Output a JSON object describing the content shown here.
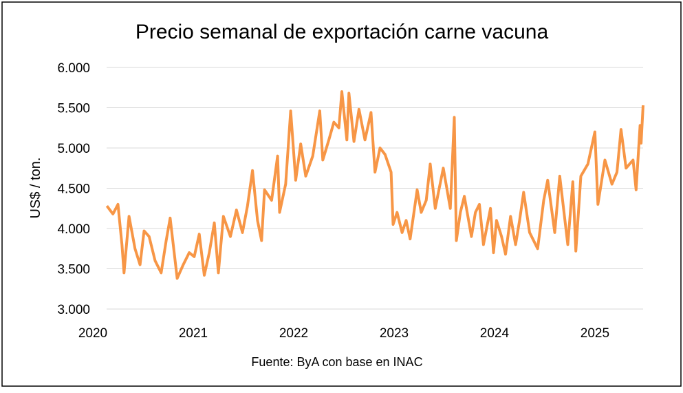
{
  "chart_data": {
    "type": "line",
    "title": "Precio semanal de exportación carne vacuna",
    "y_label": "US$ / ton.",
    "source": "Fuente: ByA con base en INAC",
    "x": [
      2020.14,
      2020.2,
      2020.25,
      2020.29,
      2020.31,
      2020.36,
      2020.42,
      2020.47,
      2020.51,
      2020.56,
      2020.62,
      2020.68,
      2020.73,
      2020.77,
      2020.84,
      2020.9,
      2020.96,
      2021.01,
      2021.06,
      2021.11,
      2021.16,
      2021.21,
      2021.25,
      2021.3,
      2021.37,
      2021.43,
      2021.49,
      2021.54,
      2021.59,
      2021.64,
      2021.68,
      2021.71,
      2021.78,
      2021.84,
      2021.86,
      2021.92,
      2021.97,
      2022.02,
      2022.07,
      2022.12,
      2022.19,
      2022.26,
      2022.29,
      2022.35,
      2022.4,
      2022.45,
      2022.48,
      2022.53,
      2022.55,
      2022.6,
      2022.65,
      2022.71,
      2022.77,
      2022.81,
      2022.86,
      2022.91,
      2022.97,
      2022.99,
      2023.03,
      2023.08,
      2023.12,
      2023.16,
      2023.23,
      2023.27,
      2023.32,
      2023.36,
      2023.41,
      2023.45,
      2023.49,
      2023.56,
      2023.6,
      2023.62,
      2023.66,
      2023.7,
      2023.77,
      2023.81,
      2023.85,
      2023.89,
      2023.96,
      2023.99,
      2024.02,
      2024.07,
      2024.11,
      2024.16,
      2024.21,
      2024.25,
      2024.29,
      2024.35,
      2024.43,
      2024.49,
      2024.53,
      2024.6,
      2024.65,
      2024.73,
      2024.78,
      2024.81,
      2024.86,
      2024.93,
      2025.0,
      2025.03,
      2025.1,
      2025.17,
      2025.22,
      2025.26,
      2025.31,
      2025.38,
      2025.41,
      2025.45,
      2025.46,
      2025.48
    ],
    "series": [
      {
        "name": "Precio",
        "color": "#f79646",
        "values": [
          4280,
          4180,
          4300,
          3800,
          3450,
          4150,
          3750,
          3550,
          3970,
          3900,
          3600,
          3450,
          3850,
          4130,
          3380,
          3550,
          3700,
          3650,
          3930,
          3420,
          3700,
          4070,
          3450,
          4150,
          3900,
          4230,
          3950,
          4280,
          4720,
          4100,
          3850,
          4480,
          4350,
          4900,
          4200,
          4550,
          5460,
          4600,
          5050,
          4650,
          4900,
          5460,
          4850,
          5100,
          5320,
          5250,
          5700,
          5100,
          5680,
          5080,
          5480,
          5100,
          5440,
          4700,
          5000,
          4920,
          4700,
          4050,
          4200,
          3950,
          4100,
          3870,
          4480,
          4200,
          4350,
          4800,
          4250,
          4500,
          4750,
          4250,
          5380,
          3850,
          4200,
          4400,
          3900,
          4200,
          4300,
          3800,
          4250,
          3700,
          4100,
          3900,
          3680,
          4150,
          3800,
          4100,
          4450,
          3950,
          3750,
          4350,
          4600,
          3950,
          4650,
          3800,
          4580,
          3720,
          4650,
          4800,
          5200,
          4300,
          4850,
          4550,
          4700,
          5230,
          4750,
          4850,
          4480,
          5280,
          5060,
          5530
        ]
      }
    ],
    "xlim": [
      2020,
      2025.48
    ],
    "xticks": [
      2020,
      2021,
      2022,
      2023,
      2024,
      2025
    ],
    "ylim": [
      3000,
      6000
    ],
    "yticks": [
      {
        "value": 3000,
        "label": "3.000"
      },
      {
        "value": 3500,
        "label": "3.500"
      },
      {
        "value": 4000,
        "label": "4.000"
      },
      {
        "value": 4500,
        "label": "4.500"
      },
      {
        "value": 5000,
        "label": "5.000"
      },
      {
        "value": 5500,
        "label": "5.500"
      },
      {
        "value": 6000,
        "label": "6.000"
      }
    ],
    "grid": true
  }
}
